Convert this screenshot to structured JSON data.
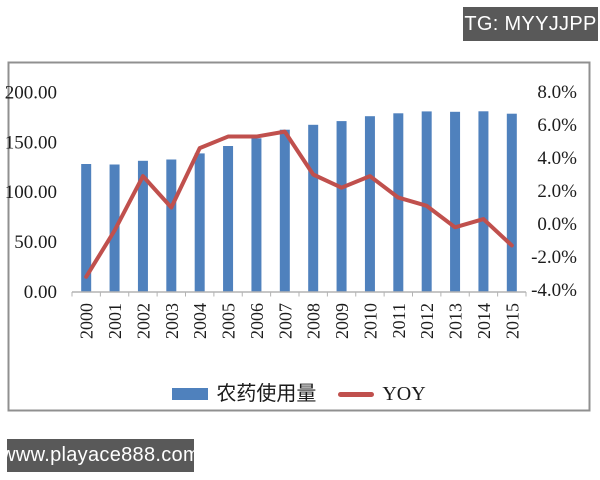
{
  "overlays": {
    "tg_badge": "TG: MYYJJPP",
    "watermark": "www.playace888.com",
    "badge_bg": "#595959",
    "badge_text_color": "#ffffff"
  },
  "chart_data": {
    "type": "bar",
    "subtype": "combo-bar-line",
    "title": "",
    "categories": [
      "2000",
      "2001",
      "2002",
      "2003",
      "2004",
      "2005",
      "2006",
      "2007",
      "2008",
      "2009",
      "2010",
      "2011",
      "2012",
      "2013",
      "2014",
      "2015"
    ],
    "series": [
      {
        "name": "农药使用量",
        "type": "bar",
        "axis": "left",
        "color": "#4F81BD",
        "values": [
          128.0,
          127.5,
          131.2,
          132.5,
          138.6,
          146.0,
          153.7,
          162.3,
          167.2,
          170.9,
          175.8,
          178.7,
          180.6,
          180.2,
          180.7,
          178.3
        ]
      },
      {
        "name": "YOY",
        "type": "line",
        "axis": "right",
        "color": "#C0504D",
        "values_pct": [
          -3.2,
          -0.4,
          2.9,
          1.0,
          4.6,
          5.3,
          5.3,
          5.6,
          3.0,
          2.2,
          2.9,
          1.6,
          1.1,
          -0.2,
          0.3,
          -1.3
        ]
      }
    ],
    "left_axis": {
      "min": 0,
      "max": 200,
      "step": 50,
      "tick_labels": [
        "0.00",
        "50.00",
        "100.00",
        "150.00",
        "200.00"
      ]
    },
    "right_axis": {
      "min": -4,
      "max": 8,
      "step": 2,
      "tick_labels": [
        "-4.0%",
        "-2.0%",
        "0.0%",
        "2.0%",
        "4.0%",
        "6.0%",
        "8.0%"
      ]
    },
    "grid": false,
    "legend_position": "bottom",
    "frame_color": "#909090",
    "axis_line_color": "#b3b3b3"
  }
}
